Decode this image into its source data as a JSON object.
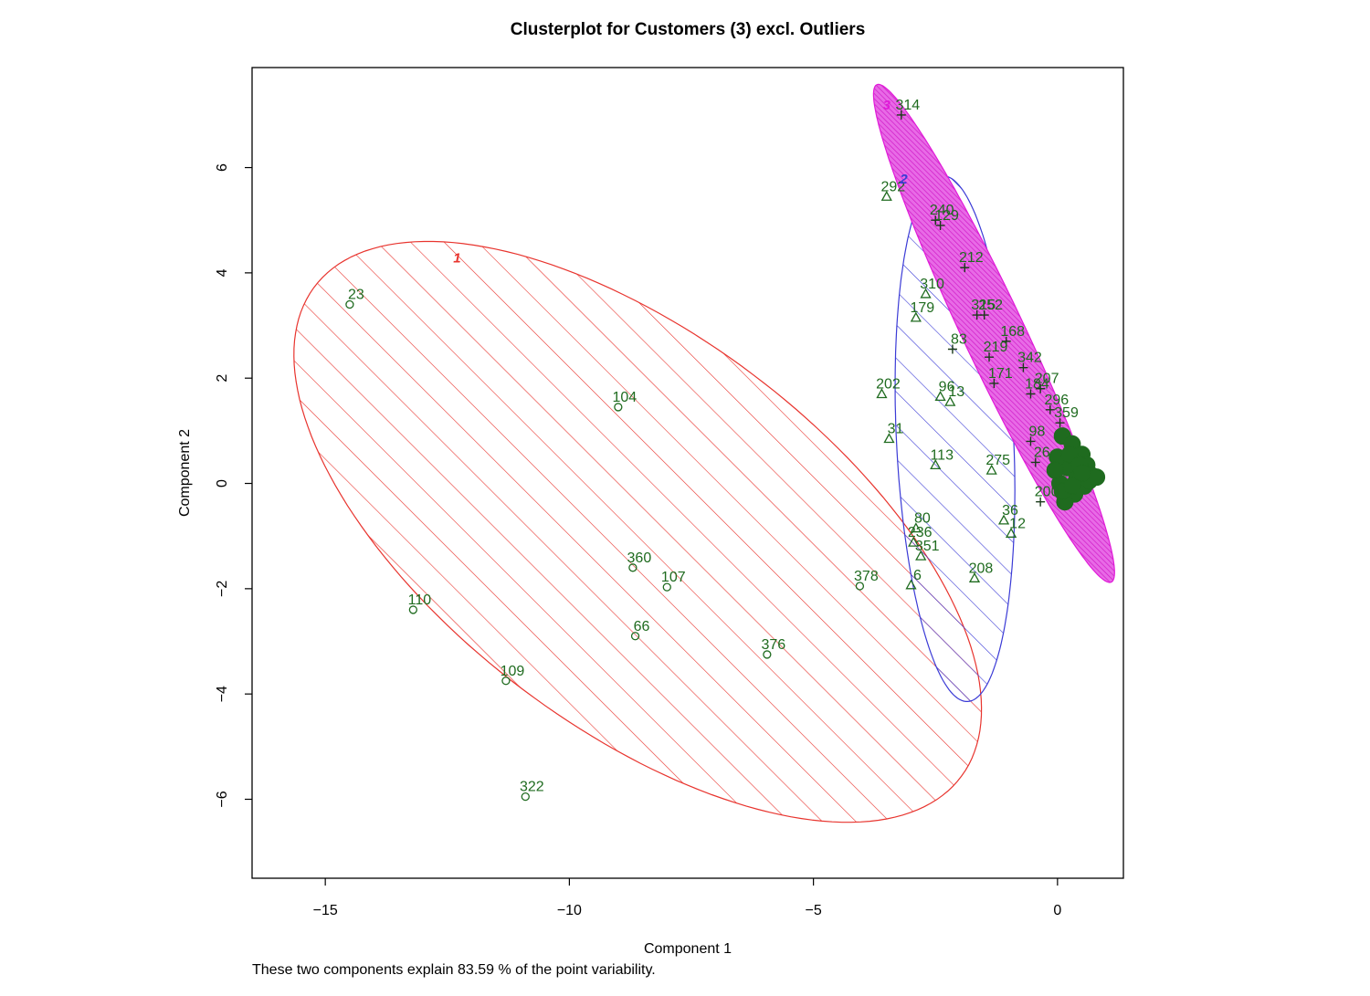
{
  "chart_data": {
    "type": "scatter",
    "title": "Clusterplot for  Customers (3) excl. Outliers",
    "subtitle": "These two components explain 83.59 % of the point variability.",
    "xlabel": "Component 1",
    "ylabel": "Component 2",
    "xlim": [
      -16.5,
      1.35
    ],
    "ylim": [
      -7.5,
      7.9
    ],
    "xticks": [
      -15,
      -10,
      -5,
      0
    ],
    "yticks": [
      -6,
      -4,
      -2,
      0,
      2,
      4,
      6
    ],
    "xtick_labels": [
      "−15",
      "−10",
      "−5",
      "0"
    ],
    "ytick_labels": [
      "−6",
      "−4",
      "−2",
      "0",
      "2",
      "4",
      "6"
    ],
    "grid": false,
    "colors": {
      "cluster1": "#e8342e",
      "cluster2": "#3b3bd6",
      "cluster3": "#e01ad8",
      "points": "#1f6b1f"
    },
    "clusters": [
      {
        "id": "1",
        "label": "1",
        "color": "#e8342e",
        "hatch": "diagonal-up",
        "fill": false,
        "ellipse": {
          "cx": -8.6,
          "cy": -0.92,
          "rx": 8.1,
          "ry": 3.8,
          "angle_deg": -34
        },
        "label_at": [
          -12.3,
          4.2
        ]
      },
      {
        "id": "2",
        "label": "2",
        "color": "#3b3bd6",
        "hatch": "diagonal-up",
        "fill": false,
        "ellipse": {
          "cx": -2.1,
          "cy": 0.85,
          "rx": 5.0,
          "ry": 1.2,
          "angle_deg": -87
        },
        "label_at": [
          -3.15,
          5.7
        ]
      },
      {
        "id": "3",
        "label": "3",
        "color": "#e01ad8",
        "hatch": "dense",
        "fill": true,
        "ellipse": {
          "cx": -1.3,
          "cy": 2.85,
          "rx": 5.3,
          "ry": 0.62,
          "angle_deg": -63
        },
        "label_at": [
          -3.5,
          7.1
        ]
      }
    ],
    "points": [
      {
        "label": "23",
        "x": -14.5,
        "y": 3.4,
        "cluster": "1"
      },
      {
        "label": "104",
        "x": -9.0,
        "y": 1.45,
        "cluster": "1"
      },
      {
        "label": "110",
        "x": -13.2,
        "y": -2.4,
        "cluster": "1"
      },
      {
        "label": "109",
        "x": -11.3,
        "y": -3.75,
        "cluster": "1"
      },
      {
        "label": "322",
        "x": -10.9,
        "y": -5.95,
        "cluster": "1"
      },
      {
        "label": "360",
        "x": -8.7,
        "y": -1.6,
        "cluster": "1"
      },
      {
        "label": "107",
        "x": -8.0,
        "y": -1.97,
        "cluster": "1"
      },
      {
        "label": "66",
        "x": -8.65,
        "y": -2.9,
        "cluster": "1"
      },
      {
        "label": "376",
        "x": -5.95,
        "y": -3.25,
        "cluster": "1"
      },
      {
        "label": "378",
        "x": -4.05,
        "y": -1.95,
        "cluster": "1"
      },
      {
        "label": "292",
        "x": -3.5,
        "y": 5.45,
        "cluster": "2"
      },
      {
        "label": "179",
        "x": -2.9,
        "y": 3.15,
        "cluster": "2"
      },
      {
        "label": "310",
        "x": -2.7,
        "y": 3.6,
        "cluster": "2"
      },
      {
        "label": "202",
        "x": -3.6,
        "y": 1.7,
        "cluster": "2"
      },
      {
        "label": "96",
        "x": -2.4,
        "y": 1.65,
        "cluster": "2"
      },
      {
        "label": "13",
        "x": -2.2,
        "y": 1.55,
        "cluster": "2"
      },
      {
        "label": "31",
        "x": -3.45,
        "y": 0.85,
        "cluster": "2"
      },
      {
        "label": "113",
        "x": -2.5,
        "y": 0.35,
        "cluster": "2"
      },
      {
        "label": "275",
        "x": -1.35,
        "y": 0.25,
        "cluster": "2"
      },
      {
        "label": "80",
        "x": -2.9,
        "y": -0.85,
        "cluster": "2"
      },
      {
        "label": "236",
        "x": -2.95,
        "y": -1.12,
        "cluster": "2"
      },
      {
        "label": "351",
        "x": -2.8,
        "y": -1.38,
        "cluster": "2"
      },
      {
        "label": "6",
        "x": -3.0,
        "y": -1.93,
        "cluster": "2"
      },
      {
        "label": "36",
        "x": -1.1,
        "y": -0.7,
        "cluster": "2"
      },
      {
        "label": "12",
        "x": -0.95,
        "y": -0.95,
        "cluster": "2"
      },
      {
        "label": "208",
        "x": -1.7,
        "y": -1.8,
        "cluster": "2"
      },
      {
        "label": "314",
        "x": -3.2,
        "y": 7.0,
        "cluster": "3"
      },
      {
        "label": "240",
        "x": -2.5,
        "y": 5.0,
        "cluster": "3"
      },
      {
        "label": "129",
        "x": -2.4,
        "y": 4.9,
        "cluster": "3"
      },
      {
        "label": "212",
        "x": -1.9,
        "y": 4.1,
        "cluster": "3"
      },
      {
        "label": "315",
        "x": -1.65,
        "y": 3.2,
        "cluster": "3"
      },
      {
        "label": "252",
        "x": -1.5,
        "y": 3.2,
        "cluster": "3"
      },
      {
        "label": "83",
        "x": -2.15,
        "y": 2.55,
        "cluster": "3"
      },
      {
        "label": "168",
        "x": -1.05,
        "y": 2.7,
        "cluster": "3"
      },
      {
        "label": "219",
        "x": -1.4,
        "y": 2.4,
        "cluster": "3"
      },
      {
        "label": "342",
        "x": -0.7,
        "y": 2.2,
        "cluster": "3"
      },
      {
        "label": "171",
        "x": -1.3,
        "y": 1.9,
        "cluster": "3"
      },
      {
        "label": "184",
        "x": -0.55,
        "y": 1.7,
        "cluster": "3"
      },
      {
        "label": "207",
        "x": -0.35,
        "y": 1.8,
        "cluster": "3"
      },
      {
        "label": "296",
        "x": -0.15,
        "y": 1.4,
        "cluster": "3"
      },
      {
        "label": "359",
        "x": 0.05,
        "y": 1.15,
        "cluster": "3"
      },
      {
        "label": "98",
        "x": -0.55,
        "y": 0.8,
        "cluster": "3"
      },
      {
        "label": "26",
        "x": -0.45,
        "y": 0.4,
        "cluster": "3"
      },
      {
        "label": "200",
        "x": -0.35,
        "y": -0.35,
        "cluster": "3"
      }
    ]
  }
}
